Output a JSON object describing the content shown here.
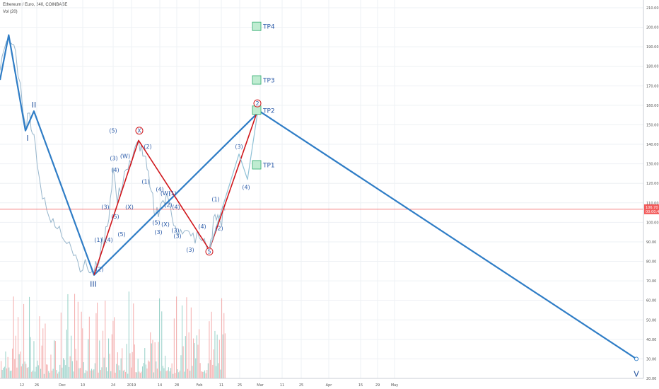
{
  "header": {
    "symbol_line": "Ethereum / Euro, 240, COINBASE",
    "volume_line": "Vol (20)"
  },
  "colors": {
    "blue_line": "#2f7dc6",
    "red_line": "#d0161b",
    "price": "#97b6cc",
    "current_price": "#f25b5b",
    "tp_box": "#bfecd1",
    "tp_border": "#2aa86a",
    "vol_up": "#7fc6bb",
    "vol_down": "#f29a9a"
  },
  "chart_data": {
    "type": "line",
    "title": "Ethereum / Euro, 240, COINBASE",
    "ylim": [
      20,
      210
    ],
    "y_ticks": [
      "210.00",
      "200.00",
      "190.00",
      "180.00",
      "170.00",
      "160.00",
      "150.00",
      "140.00",
      "130.00",
      "120.00",
      "110.00",
      "100.00",
      "90.00",
      "80.00",
      "70.00",
      "60.00",
      "50.00",
      "40.00",
      "30.00",
      "20.00"
    ],
    "x_ticks": [
      "12",
      "26",
      "Dec",
      "10",
      "24",
      "2019",
      "14",
      "28",
      "Feb",
      "11",
      "25",
      "Mar",
      "11",
      "25",
      "Apr",
      "15",
      "29",
      "May"
    ],
    "current_price": {
      "label": "106.70",
      "sub": "00:00:42",
      "value": 106.7
    },
    "series": [
      {
        "name": "blue_wave_path",
        "points": [
          [
            0.0,
            173
          ],
          [
            12.3,
            196
          ],
          [
            36.0,
            147
          ],
          [
            48.0,
            157
          ],
          [
            133.0,
            73
          ],
          [
            367.0,
            157
          ],
          [
            900.0,
            30
          ]
        ]
      },
      {
        "name": "red_wave_path",
        "points": [
          [
            133.0,
            73
          ],
          [
            196.0,
            142
          ],
          [
            296.0,
            86
          ],
          [
            365.0,
            158
          ]
        ]
      },
      {
        "name": "projection",
        "points": [
          [
            296.0,
            86
          ],
          [
            338.0,
            135
          ],
          [
            350.0,
            122
          ],
          [
            365.0,
            158
          ]
        ]
      }
    ],
    "labels": [
      {
        "text": "I",
        "x": 39,
        "y": 143,
        "kind": "major"
      },
      {
        "text": "II",
        "x": 48,
        "y": 160,
        "kind": "major"
      },
      {
        "text": "III",
        "x": 132,
        "y": 68,
        "kind": "major"
      },
      {
        "text": "V",
        "x": 900,
        "y": 22,
        "kind": "major"
      },
      {
        "text": "(5)",
        "x": 160,
        "y": 147,
        "kind": "wave"
      },
      {
        "text": "(3)",
        "x": 161,
        "y": 133,
        "kind": "wave"
      },
      {
        "text": "(4)",
        "x": 163,
        "y": 127,
        "kind": "wave"
      },
      {
        "text": "(W)",
        "x": 177,
        "y": 134,
        "kind": "wave"
      },
      {
        "text": "(2)",
        "x": 209,
        "y": 139,
        "kind": "wave"
      },
      {
        "text": "(1)",
        "x": 206,
        "y": 121,
        "kind": "wave"
      },
      {
        "text": "(3)",
        "x": 149,
        "y": 108,
        "kind": "wave"
      },
      {
        "text": "(5)",
        "x": 163,
        "y": 103,
        "kind": "wave"
      },
      {
        "text": "(X)",
        "x": 183,
        "y": 108,
        "kind": "wave"
      },
      {
        "text": "(5)",
        "x": 172,
        "y": 94,
        "kind": "wave"
      },
      {
        "text": "(1)",
        "x": 139,
        "y": 91,
        "kind": "wave"
      },
      {
        "text": "(4)",
        "x": 154,
        "y": 91,
        "kind": "wave"
      },
      {
        "text": "(2)",
        "x": 141,
        "y": 76,
        "kind": "wave"
      },
      {
        "text": "(4)",
        "x": 226,
        "y": 117,
        "kind": "wave"
      },
      {
        "text": "(W)",
        "x": 234,
        "y": 115,
        "kind": "wave"
      },
      {
        "text": "(1)",
        "x": 244,
        "y": 115,
        "kind": "wave"
      },
      {
        "text": "(2)",
        "x": 238,
        "y": 109,
        "kind": "wave"
      },
      {
        "text": "(4)",
        "x": 249,
        "y": 108,
        "kind": "wave"
      },
      {
        "text": "(5)",
        "x": 221,
        "y": 100,
        "kind": "wave"
      },
      {
        "text": "(X)",
        "x": 234,
        "y": 99,
        "kind": "wave"
      },
      {
        "text": "(3)",
        "x": 224,
        "y": 95,
        "kind": "wave"
      },
      {
        "text": "(3)",
        "x": 248,
        "y": 96,
        "kind": "wave"
      },
      {
        "text": "(3)",
        "x": 251,
        "y": 93,
        "kind": "wave"
      },
      {
        "text": "(4)",
        "x": 286,
        "y": 98,
        "kind": "wave"
      },
      {
        "text": "(3)",
        "x": 269,
        "y": 86,
        "kind": "wave"
      },
      {
        "text": "(1)",
        "x": 305,
        "y": 112,
        "kind": "wave"
      },
      {
        "text": "(2)",
        "x": 310,
        "y": 97,
        "kind": "wave"
      },
      {
        "text": "(3)",
        "x": 338,
        "y": 139,
        "kind": "wave"
      },
      {
        "text": "(4)",
        "x": 348,
        "y": 118,
        "kind": "wave"
      }
    ],
    "circled_labels": [
      {
        "text": "X",
        "x": 197,
        "y": 147
      },
      {
        "text": "5",
        "x": 296,
        "y": 85
      },
      {
        "text": "2",
        "x": 364,
        "y": 161
      }
    ],
    "targets": [
      {
        "label": "TP4",
        "value": 200.5
      },
      {
        "label": "TP3",
        "value": 173
      },
      {
        "label": "TP2",
        "value": 157.5
      },
      {
        "label": "TP1",
        "value": 129.5
      }
    ],
    "grid": true
  }
}
